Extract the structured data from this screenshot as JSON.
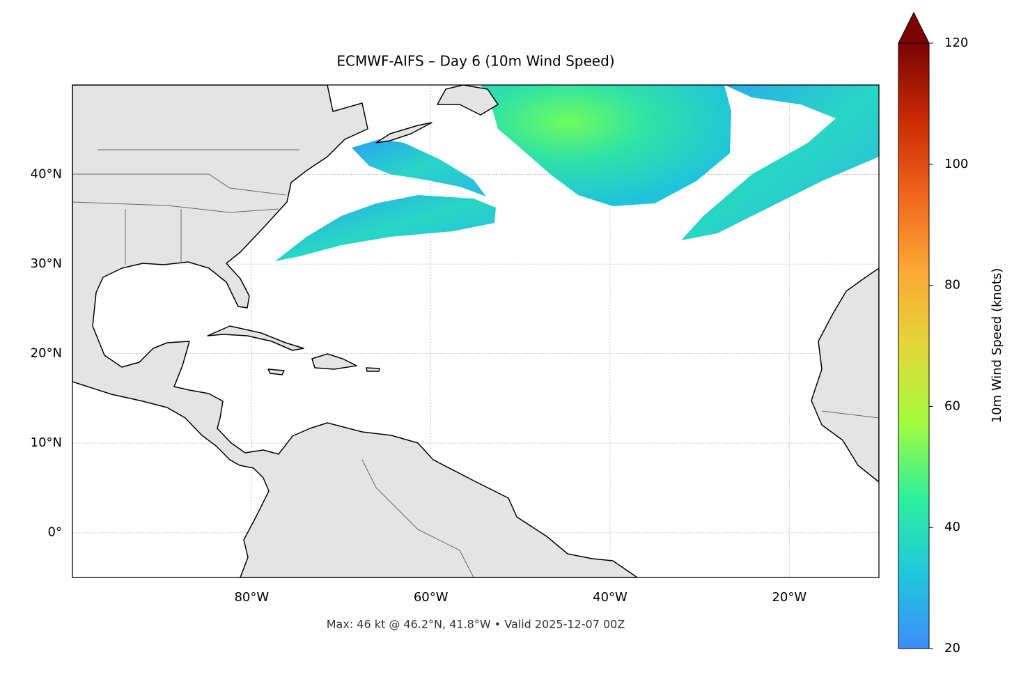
{
  "chart_data": {
    "type": "map",
    "title": "ECMWF-AIFS – Day 6 (10m Wind Speed)",
    "footer": "Max: 46 kt @ 46.2°N, 41.8°W • Valid 2025-12-07 00Z",
    "xlim": [
      -100,
      -10
    ],
    "ylim": [
      -5,
      50
    ],
    "xticks": [
      {
        "value": -80,
        "label": "80°W"
      },
      {
        "value": -60,
        "label": "60°W"
      },
      {
        "value": -40,
        "label": "40°W"
      },
      {
        "value": -20,
        "label": "20°W"
      }
    ],
    "yticks": [
      {
        "value": 0,
        "label": "0°"
      },
      {
        "value": 10,
        "label": "10°N"
      },
      {
        "value": 20,
        "label": "20°N"
      },
      {
        "value": 30,
        "label": "30°N"
      },
      {
        "value": 40,
        "label": "40°N"
      }
    ],
    "grid": true,
    "colorbar": {
      "label": "10m Wind Speed (knots)",
      "lim": [
        20,
        120
      ],
      "ticks": [
        20,
        40,
        60,
        80,
        100,
        120
      ],
      "colors": [
        "#3e8cfd",
        "#1fc8dc",
        "#2ef09a",
        "#a4fc3c",
        "#e3d63a",
        "#fca834",
        "#f0651c",
        "#c92a04",
        "#7a0403"
      ]
    }
  }
}
